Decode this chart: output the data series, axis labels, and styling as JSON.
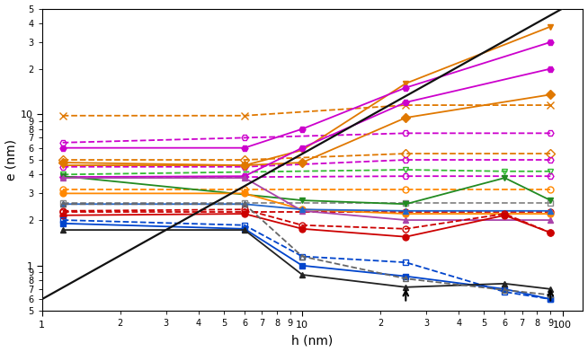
{
  "xlabel": "h (nm)",
  "ylabel": "e (nm)",
  "xlim": [
    1.0,
    120.0
  ],
  "ylim": [
    0.5,
    50.0
  ],
  "bg": "#ffffff",
  "diag_line": {
    "x": [
      1.0,
      100.0
    ],
    "y": [
      0.6,
      50.0
    ],
    "color": "#111111",
    "lw": 1.6
  },
  "series": [
    {
      "label": "orange_x_dashed",
      "x": [
        1.2,
        6.0,
        25.0,
        90.0
      ],
      "y": [
        9.8,
        9.8,
        11.5,
        11.5
      ],
      "color": "#E07800",
      "ls": "--",
      "marker": "x",
      "mfc": "none",
      "ms": 6,
      "lw": 1.3
    },
    {
      "label": "purple_bowtie_dashed_high",
      "x": [
        1.2,
        6.0,
        25.0,
        90.0
      ],
      "y": [
        6.5,
        7.0,
        7.5,
        7.5
      ],
      "color": "#CC00CC",
      "ls": "--",
      "marker": "H",
      "mfc": "none",
      "ms": 5,
      "lw": 1.3
    },
    {
      "label": "orange_diamond_dashed_high",
      "x": [
        1.2,
        6.0,
        25.0,
        90.0
      ],
      "y": [
        5.0,
        5.0,
        5.5,
        5.5
      ],
      "color": "#E07800",
      "ls": "--",
      "marker": "D",
      "mfc": "none",
      "ms": 5,
      "lw": 1.3
    },
    {
      "label": "purple_bowtie_dashed_mid",
      "x": [
        1.2,
        6.0,
        25.0,
        90.0
      ],
      "y": [
        4.5,
        4.5,
        5.0,
        5.0
      ],
      "color": "#CC00CC",
      "ls": "--",
      "marker": "H",
      "mfc": "none",
      "ms": 5,
      "lw": 1.3
    },
    {
      "label": "green_triangle_dashed",
      "x": [
        1.2,
        25.0,
        60.0,
        90.0
      ],
      "y": [
        4.0,
        4.3,
        4.2,
        4.2
      ],
      "color": "#33BB33",
      "ls": "--",
      "marker": "v",
      "mfc": "none",
      "ms": 5,
      "lw": 1.3
    },
    {
      "label": "orange_circle_dashed",
      "x": [
        1.2,
        6.0,
        25.0,
        90.0
      ],
      "y": [
        3.2,
        3.2,
        3.2,
        3.2
      ],
      "color": "#FF8800",
      "ls": "--",
      "marker": "o",
      "mfc": "none",
      "ms": 5,
      "lw": 1.3
    },
    {
      "label": "purple_bowtie_dashed_low",
      "x": [
        1.2,
        6.0,
        25.0,
        90.0
      ],
      "y": [
        3.85,
        3.85,
        3.9,
        3.9
      ],
      "color": "#CC00CC",
      "ls": "--",
      "marker": "H",
      "mfc": "none",
      "ms": 5,
      "lw": 1.3
    },
    {
      "label": "gray_dashed",
      "x": [
        1.2,
        6.0,
        25.0,
        90.0
      ],
      "y": [
        2.6,
        2.6,
        2.6,
        2.6
      ],
      "color": "#888888",
      "ls": "--",
      "marker": "s",
      "mfc": "none",
      "ms": 5,
      "lw": 1.3
    },
    {
      "label": "red_dashed",
      "x": [
        1.2,
        6.0,
        25.0,
        90.0
      ],
      "y": [
        2.25,
        2.25,
        2.25,
        2.25
      ],
      "color": "#CC0000",
      "ls": "--",
      "marker": "o",
      "mfc": "none",
      "ms": 5,
      "lw": 1.3
    },
    {
      "label": "orange_bowtie_solid",
      "x": [
        1.2,
        6.0,
        10.0,
        25.0,
        90.0
      ],
      "y": [
        4.6,
        4.6,
        5.8,
        16.0,
        38.0
      ],
      "color": "#E07800",
      "ls": "-",
      "marker": "v",
      "mfc": "#E07800",
      "ms": 5,
      "lw": 1.3
    },
    {
      "label": "purple_bowtie_solid_high",
      "x": [
        1.2,
        6.0,
        10.0,
        25.0,
        90.0
      ],
      "y": [
        6.0,
        6.0,
        8.0,
        15.0,
        30.0
      ],
      "color": "#CC00CC",
      "ls": "-",
      "marker": "H",
      "mfc": "#CC00CC",
      "ms": 5,
      "lw": 1.3
    },
    {
      "label": "orange_diamond_solid",
      "x": [
        1.2,
        6.0,
        10.0,
        25.0,
        90.0
      ],
      "y": [
        4.8,
        4.6,
        4.8,
        9.5,
        13.5
      ],
      "color": "#E07800",
      "ls": "-",
      "marker": "D",
      "mfc": "#E07800",
      "ms": 5,
      "lw": 1.3
    },
    {
      "label": "purple_bowtie_solid_mid",
      "x": [
        1.2,
        6.0,
        10.0,
        25.0,
        90.0
      ],
      "y": [
        3.85,
        3.9,
        6.0,
        12.0,
        20.0
      ],
      "color": "#CC00CC",
      "ls": "-",
      "marker": "H",
      "mfc": "#CC00CC",
      "ms": 5,
      "lw": 1.3
    },
    {
      "label": "green_triangle_solid",
      "x": [
        1.2,
        10.0,
        25.0,
        60.0,
        90.0
      ],
      "y": [
        3.9,
        2.7,
        2.55,
        3.8,
        2.7
      ],
      "color": "#228B22",
      "ls": "-",
      "marker": "v",
      "mfc": "#228B22",
      "ms": 5,
      "lw": 1.3
    },
    {
      "label": "orange_circle_solid",
      "x": [
        1.2,
        6.0,
        10.0,
        25.0,
        90.0
      ],
      "y": [
        3.0,
        3.0,
        2.35,
        2.2,
        2.2
      ],
      "color": "#FF8800",
      "ls": "-",
      "marker": "o",
      "mfc": "#FF8800",
      "ms": 5,
      "lw": 1.3
    },
    {
      "label": "purple_triangle_solid",
      "x": [
        1.2,
        6.0,
        10.0,
        25.0,
        90.0
      ],
      "y": [
        3.8,
        3.8,
        2.3,
        2.0,
        2.0
      ],
      "color": "#AA44AA",
      "ls": "-",
      "marker": "^",
      "mfc": "#AA44AA",
      "ms": 5,
      "lw": 1.3
    },
    {
      "label": "blue_solid",
      "x": [
        1.2,
        6.0,
        10.0,
        25.0,
        90.0
      ],
      "y": [
        2.55,
        2.55,
        2.35,
        2.3,
        2.3
      ],
      "color": "#2266CC",
      "ls": "-",
      "marker": "^",
      "mfc": "#2266CC",
      "ms": 5,
      "lw": 1.3
    },
    {
      "label": "red_circle_solid",
      "x": [
        1.2,
        6.0,
        10.0,
        25.0,
        60.0,
        90.0
      ],
      "y": [
        2.15,
        2.2,
        1.75,
        1.55,
        2.15,
        1.65
      ],
      "color": "#CC0000",
      "ls": "-",
      "marker": "o",
      "mfc": "#CC0000",
      "ms": 5,
      "lw": 1.3
    },
    {
      "label": "red_circle_dashed",
      "x": [
        1.2,
        6.0,
        10.0,
        25.0,
        60.0,
        90.0
      ],
      "y": [
        2.3,
        2.35,
        1.85,
        1.75,
        2.2,
        1.65
      ],
      "color": "#CC0000",
      "ls": "--",
      "marker": "o",
      "mfc": "none",
      "ms": 5,
      "lw": 1.3
    },
    {
      "label": "blue_square_solid",
      "x": [
        1.2,
        6.0,
        10.0,
        25.0,
        60.0,
        90.0
      ],
      "y": [
        1.9,
        1.75,
        1.0,
        0.85,
        0.7,
        0.6
      ],
      "color": "#0044CC",
      "ls": "-",
      "marker": "s",
      "mfc": "#0044CC",
      "ms": 5,
      "lw": 1.3
    },
    {
      "label": "blue_square_dashed",
      "x": [
        1.2,
        6.0,
        10.0,
        25.0,
        60.0,
        90.0
      ],
      "y": [
        2.0,
        1.85,
        1.15,
        1.05,
        0.67,
        0.6
      ],
      "color": "#0044CC",
      "ls": "--",
      "marker": "s",
      "mfc": "none",
      "ms": 5,
      "lw": 1.3
    },
    {
      "label": "black_triangle_solid",
      "x": [
        1.2,
        6.0,
        10.0,
        25.0,
        60.0,
        90.0
      ],
      "y": [
        1.72,
        1.72,
        0.87,
        0.72,
        0.76,
        0.7
      ],
      "color": "#222222",
      "ls": "-",
      "marker": "^",
      "mfc": "#222222",
      "ms": 5,
      "lw": 1.3
    },
    {
      "label": "black_triangle_dashed",
      "x": [
        1.2,
        6.0,
        10.0,
        25.0,
        60.0,
        90.0
      ],
      "y": [
        2.55,
        2.55,
        1.15,
        0.82,
        0.69,
        0.64
      ],
      "color": "#666666",
      "ls": "--",
      "marker": "^",
      "mfc": "none",
      "ms": 5,
      "lw": 1.3
    }
  ],
  "arrows": [
    {
      "x": 25.0,
      "y_tip": 0.565,
      "y_tail": 0.73
    },
    {
      "x": 90.0,
      "y_tip": 0.565,
      "y_tail": 0.73
    }
  ]
}
